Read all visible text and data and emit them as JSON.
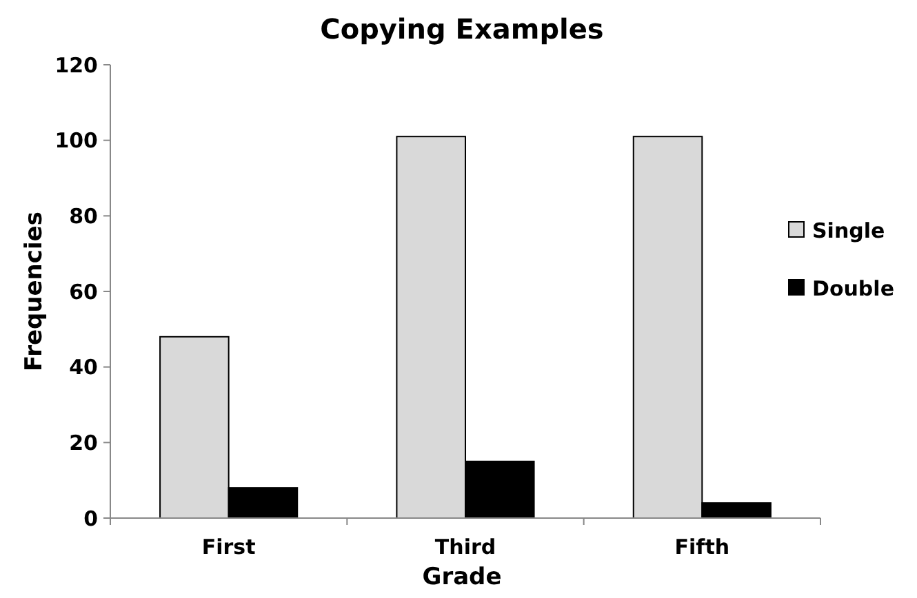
{
  "chart_data": {
    "type": "bar",
    "title": "Copying Examples",
    "xlabel": "Grade",
    "ylabel": "Frequencies",
    "categories": [
      "First",
      "Third",
      "Fifth"
    ],
    "series": [
      {
        "name": "Single",
        "color": "#d9d9d9",
        "values": [
          48,
          101,
          101
        ]
      },
      {
        "name": "Double",
        "color": "#000000",
        "values": [
          8,
          15,
          4
        ]
      }
    ],
    "ylim": [
      0,
      120
    ],
    "yticks": [
      0,
      20,
      40,
      60,
      80,
      100,
      120
    ],
    "grid": false,
    "legend": "right"
  }
}
